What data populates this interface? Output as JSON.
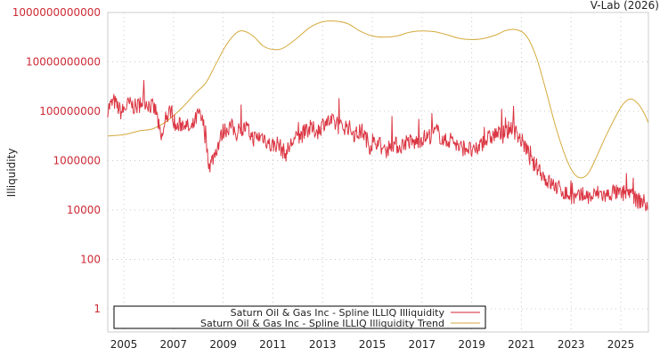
{
  "credit": "V-Lab (2026)",
  "colors": {
    "illiquidity": "#d7202f",
    "trend": "#d4aa3c",
    "grid": "#c8c8c8",
    "axis": "#cccccc",
    "tick_y": "#cc2a36",
    "text": "#222222"
  },
  "legend": {
    "items": [
      {
        "label": "Saturn Oil & Gas Inc - Spline ILLIQ Illiquidity",
        "color": "#d7202f"
      },
      {
        "label": "Saturn Oil & Gas Inc - Spline ILLIQ Illiquidity Trend",
        "color": "#d4aa3c"
      }
    ]
  },
  "chart_data": {
    "type": "line",
    "title": "",
    "xlabel": "",
    "ylabel": "Illiquidity",
    "yscale": "log",
    "xlim": [
      2004.35,
      2026.1
    ],
    "ylim": [
      0.12,
      1000000000000
    ],
    "y_ticks": [
      {
        "value": 1000000000000,
        "label": "1000000000000"
      },
      {
        "value": 10000000000,
        "label": "10000000000"
      },
      {
        "value": 100000000,
        "label": "100000000"
      },
      {
        "value": 1000000,
        "label": "1000000"
      },
      {
        "value": 10000,
        "label": "10000"
      },
      {
        "value": 100,
        "label": "100"
      },
      {
        "value": 1,
        "label": "1"
      }
    ],
    "x_ticks": [
      2005,
      2007,
      2009,
      2011,
      2013,
      2015,
      2017,
      2019,
      2021,
      2023,
      2025
    ],
    "grid": true,
    "legend_position": "bottom-inside",
    "series": [
      {
        "name": "Saturn Oil & Gas Inc - Spline ILLIQ Illiquidity",
        "color": "#d7202f",
        "log10_points": [
          [
            2004.35,
            8.1
          ],
          [
            2004.6,
            8.4
          ],
          [
            2004.9,
            7.95
          ],
          [
            2005.2,
            8.3
          ],
          [
            2005.5,
            8.15
          ],
          [
            2005.8,
            8.45
          ],
          [
            2006.1,
            8.2
          ],
          [
            2006.3,
            8.0
          ],
          [
            2006.5,
            6.8
          ],
          [
            2006.7,
            7.6
          ],
          [
            2006.9,
            8.1
          ],
          [
            2007.1,
            7.3
          ],
          [
            2007.4,
            7.55
          ],
          [
            2007.7,
            7.2
          ],
          [
            2008.0,
            7.9
          ],
          [
            2008.2,
            7.5
          ],
          [
            2008.45,
            5.75
          ],
          [
            2008.7,
            6.4
          ],
          [
            2009.0,
            7.2
          ],
          [
            2009.3,
            7.4
          ],
          [
            2009.6,
            7.05
          ],
          [
            2009.9,
            7.35
          ],
          [
            2010.2,
            6.9
          ],
          [
            2010.6,
            7.0
          ],
          [
            2010.9,
            6.6
          ],
          [
            2011.2,
            6.7
          ],
          [
            2011.5,
            6.25
          ],
          [
            2011.8,
            6.8
          ],
          [
            2012.1,
            7.0
          ],
          [
            2012.5,
            7.3
          ],
          [
            2012.8,
            7.2
          ],
          [
            2013.1,
            7.6
          ],
          [
            2013.4,
            7.55
          ],
          [
            2013.7,
            7.35
          ],
          [
            2014.0,
            7.4
          ],
          [
            2014.3,
            7.05
          ],
          [
            2014.6,
            7.2
          ],
          [
            2014.9,
            6.6
          ],
          [
            2015.2,
            6.8
          ],
          [
            2015.5,
            6.35
          ],
          [
            2015.8,
            6.7
          ],
          [
            2016.1,
            6.55
          ],
          [
            2016.4,
            6.8
          ],
          [
            2016.7,
            6.7
          ],
          [
            2017.0,
            6.9
          ],
          [
            2017.3,
            7.0
          ],
          [
            2017.6,
            7.2
          ],
          [
            2017.9,
            6.75
          ],
          [
            2018.2,
            6.9
          ],
          [
            2018.5,
            6.5
          ],
          [
            2018.8,
            6.55
          ],
          [
            2019.1,
            6.3
          ],
          [
            2019.4,
            6.7
          ],
          [
            2019.7,
            6.9
          ],
          [
            2020.0,
            7.1
          ],
          [
            2020.3,
            7.0
          ],
          [
            2020.6,
            7.4
          ],
          [
            2020.8,
            7.1
          ],
          [
            2021.0,
            6.8
          ],
          [
            2021.2,
            6.5
          ],
          [
            2021.4,
            5.9
          ],
          [
            2021.7,
            5.7
          ],
          [
            2022.0,
            5.2
          ],
          [
            2022.3,
            5.0
          ],
          [
            2022.6,
            4.8
          ],
          [
            2022.9,
            4.6
          ],
          [
            2023.2,
            4.45
          ],
          [
            2023.5,
            4.6
          ],
          [
            2023.8,
            4.5
          ],
          [
            2024.1,
            4.7
          ],
          [
            2024.4,
            4.55
          ],
          [
            2024.7,
            4.75
          ],
          [
            2025.0,
            4.6
          ],
          [
            2025.3,
            4.8
          ],
          [
            2025.6,
            4.4
          ],
          [
            2025.9,
            4.35
          ],
          [
            2026.1,
            4.1
          ]
        ]
      },
      {
        "name": "Saturn Oil & Gas Inc - Spline ILLIQ Illiquidity Trend",
        "color": "#d4aa3c",
        "log10_points": [
          [
            2004.35,
            7.0
          ],
          [
            2005.0,
            7.05
          ],
          [
            2005.6,
            7.2
          ],
          [
            2006.2,
            7.3
          ],
          [
            2006.8,
            7.65
          ],
          [
            2007.4,
            8.2
          ],
          [
            2007.9,
            8.75
          ],
          [
            2008.3,
            9.15
          ],
          [
            2008.7,
            9.9
          ],
          [
            2009.1,
            10.65
          ],
          [
            2009.5,
            11.15
          ],
          [
            2009.8,
            11.25
          ],
          [
            2010.2,
            11.05
          ],
          [
            2010.6,
            10.65
          ],
          [
            2011.0,
            10.5
          ],
          [
            2011.4,
            10.55
          ],
          [
            2011.9,
            10.9
          ],
          [
            2012.5,
            11.4
          ],
          [
            2013.0,
            11.62
          ],
          [
            2013.5,
            11.65
          ],
          [
            2014.0,
            11.55
          ],
          [
            2014.5,
            11.25
          ],
          [
            2015.0,
            11.05
          ],
          [
            2015.5,
            11.0
          ],
          [
            2016.0,
            11.05
          ],
          [
            2016.5,
            11.2
          ],
          [
            2017.0,
            11.25
          ],
          [
            2017.5,
            11.22
          ],
          [
            2018.0,
            11.1
          ],
          [
            2018.5,
            10.95
          ],
          [
            2019.0,
            10.9
          ],
          [
            2019.5,
            10.95
          ],
          [
            2020.0,
            11.1
          ],
          [
            2020.4,
            11.28
          ],
          [
            2020.8,
            11.3
          ],
          [
            2021.2,
            11.05
          ],
          [
            2021.6,
            10.2
          ],
          [
            2022.0,
            8.8
          ],
          [
            2022.4,
            7.3
          ],
          [
            2022.8,
            6.1
          ],
          [
            2023.1,
            5.5
          ],
          [
            2023.4,
            5.3
          ],
          [
            2023.7,
            5.5
          ],
          [
            2024.0,
            6.1
          ],
          [
            2024.4,
            7.0
          ],
          [
            2024.8,
            7.8
          ],
          [
            2025.1,
            8.3
          ],
          [
            2025.4,
            8.5
          ],
          [
            2025.7,
            8.3
          ],
          [
            2025.95,
            7.9
          ],
          [
            2026.1,
            7.55
          ]
        ]
      }
    ]
  }
}
